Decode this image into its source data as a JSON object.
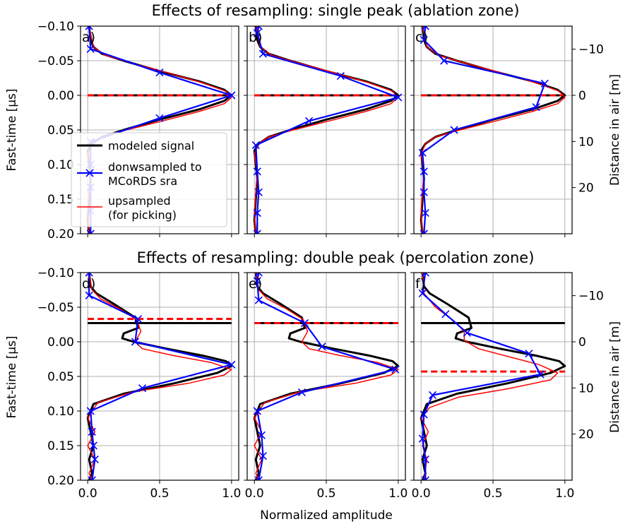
{
  "figure": {
    "title_top": "Effects of resampling: single peak (ablation zone)",
    "title_bottom": "Effects of resampling: double peak (percolation zone)",
    "ylabel_left": "Fast-time [µs]",
    "ylabel_right": "Distance in air [m]",
    "xlabel": "Normalized amplitude"
  },
  "legend": [
    {
      "label": "modeled signal",
      "color": "#000000",
      "style": "thick"
    },
    {
      "label": "donwsampled to\nMCoRDS sra",
      "color": "#0000ff",
      "style": "cross"
    },
    {
      "label": "upsampled\n(for picking)",
      "color": "#ff0000",
      "style": "thin"
    }
  ],
  "colors": {
    "modeled": "#000000",
    "down": "#0000ff",
    "up": "#ff0000",
    "grid": "#b0b0b0"
  },
  "chart_data": [
    {
      "panel": "a)",
      "type": "line",
      "xlim": [
        -0.05,
        1.05
      ],
      "ylim": [
        0.2,
        -0.1
      ],
      "xticks": [
        0.0,
        0.5,
        1.0
      ],
      "xtick_labels": [
        "0.0",
        "0.5",
        "1.0"
      ],
      "yticks": [
        -0.1,
        -0.05,
        0.0,
        0.05,
        0.1,
        0.15,
        0.2
      ],
      "ytick_labels": [
        "−0.10",
        "−0.05",
        "0.00",
        "0.05",
        "0.10",
        "0.15",
        "0.20"
      ],
      "series": [
        {
          "name": "modeled signal",
          "x": [
            0.01,
            0.02,
            0.04,
            0.1,
            0.25,
            0.5,
            0.78,
            0.95,
            1.0,
            0.95,
            0.78,
            0.5,
            0.25,
            0.1,
            0.03,
            0.0,
            0.01,
            0.02,
            0.01,
            0.0,
            0.01
          ],
          "y": [
            -0.1,
            -0.08,
            -0.07,
            -0.06,
            -0.05,
            -0.035,
            -0.02,
            -0.008,
            0.0,
            0.008,
            0.02,
            0.035,
            0.05,
            0.06,
            0.07,
            0.08,
            0.1,
            0.12,
            0.15,
            0.18,
            0.2
          ]
        },
        {
          "name": "donwsampled to MCoRDS sra",
          "x": [
            0.01,
            0.02,
            0.5,
            1.0,
            0.5,
            0.02,
            0.02,
            0.02,
            0.02,
            0.02
          ],
          "y": [
            -0.1,
            -0.067,
            -0.033,
            0.0,
            0.033,
            0.067,
            0.1,
            0.133,
            0.167,
            0.2
          ]
        },
        {
          "name": "upsampled (for picking)",
          "x": [
            0.01,
            0.04,
            0.12,
            0.3,
            0.55,
            0.8,
            0.96,
            1.0,
            0.95,
            0.78,
            0.52,
            0.27,
            0.1,
            0.03,
            0.0,
            0.02,
            0.01,
            0.0,
            0.01
          ],
          "y": [
            -0.1,
            -0.07,
            -0.058,
            -0.047,
            -0.033,
            -0.018,
            -0.006,
            0.003,
            0.012,
            0.023,
            0.037,
            0.05,
            0.06,
            0.07,
            0.085,
            0.11,
            0.14,
            0.17,
            0.2
          ]
        }
      ],
      "hlines": [
        {
          "y": 0.0,
          "color": "black",
          "style": "solid"
        },
        {
          "y": 0.0,
          "color": "red",
          "style": "dashed"
        }
      ]
    },
    {
      "panel": "b)",
      "type": "line",
      "xlim": [
        -0.05,
        1.05
      ],
      "ylim": [
        0.2,
        -0.1
      ],
      "xticks": [
        0.0,
        0.5,
        1.0
      ],
      "xtick_labels": [
        "0.0",
        "0.5",
        "1.0"
      ],
      "yticks": [
        -0.1,
        -0.05,
        0.0,
        0.05,
        0.1,
        0.15,
        0.2
      ],
      "ytick_labels": [],
      "series": [
        {
          "name": "modeled signal",
          "x": [
            0.01,
            0.02,
            0.04,
            0.1,
            0.25,
            0.5,
            0.78,
            0.95,
            1.0,
            0.95,
            0.78,
            0.5,
            0.25,
            0.1,
            0.03,
            0.0,
            0.01,
            0.02,
            0.01,
            0.0,
            0.01
          ],
          "y": [
            -0.1,
            -0.08,
            -0.07,
            -0.06,
            -0.05,
            -0.035,
            -0.02,
            -0.008,
            0.0,
            0.008,
            0.02,
            0.035,
            0.05,
            0.06,
            0.07,
            0.08,
            0.1,
            0.12,
            0.15,
            0.18,
            0.2
          ]
        },
        {
          "name": "donwsampled to MCoRDS sra",
          "x": [
            0.03,
            0.02,
            0.06,
            0.6,
            1.0,
            0.38,
            0.01,
            0.02,
            0.03,
            0.02,
            0.02
          ],
          "y": [
            -0.1,
            -0.09,
            -0.06,
            -0.028,
            0.003,
            0.037,
            0.072,
            0.11,
            0.14,
            0.17,
            0.2
          ]
        },
        {
          "name": "upsampled (for picking)",
          "x": [
            0.01,
            0.04,
            0.12,
            0.3,
            0.55,
            0.8,
            0.96,
            1.0,
            0.95,
            0.78,
            0.52,
            0.27,
            0.1,
            0.03,
            0.0,
            0.02,
            0.01,
            0.0,
            0.01
          ],
          "y": [
            -0.1,
            -0.07,
            -0.058,
            -0.047,
            -0.033,
            -0.018,
            -0.006,
            0.003,
            0.012,
            0.023,
            0.037,
            0.05,
            0.06,
            0.07,
            0.085,
            0.11,
            0.14,
            0.17,
            0.2
          ]
        }
      ],
      "hlines": [
        {
          "y": 0.0,
          "color": "black",
          "style": "solid"
        },
        {
          "y": 0.0,
          "color": "red",
          "style": "dashed"
        }
      ]
    },
    {
      "panel": "c)",
      "type": "line",
      "xlim": [
        -0.05,
        1.05
      ],
      "ylim": [
        0.2,
        -0.1
      ],
      "xticks": [
        0.0,
        0.5,
        1.0
      ],
      "xtick_labels": [
        "0.0",
        "0.5",
        "1.0"
      ],
      "yticks": [
        -0.1,
        -0.05,
        0.0,
        0.05,
        0.1,
        0.15,
        0.2
      ],
      "ytick_labels": [],
      "right_ticks_y": [
        -0.0667,
        0.0,
        0.0667,
        0.1333
      ],
      "right_tick_labels": [
        "−10",
        "0",
        "10",
        "20"
      ],
      "series": [
        {
          "name": "modeled signal",
          "x": [
            0.01,
            0.02,
            0.04,
            0.1,
            0.25,
            0.5,
            0.78,
            0.95,
            1.0,
            0.95,
            0.78,
            0.5,
            0.25,
            0.1,
            0.03,
            0.0,
            0.01,
            0.02,
            0.01,
            0.0,
            0.01
          ],
          "y": [
            -0.1,
            -0.08,
            -0.07,
            -0.06,
            -0.05,
            -0.035,
            -0.02,
            -0.008,
            0.0,
            0.008,
            0.02,
            0.035,
            0.05,
            0.06,
            0.07,
            0.08,
            0.1,
            0.12,
            0.15,
            0.18,
            0.2
          ]
        },
        {
          "name": "donwsampled to MCoRDS sra",
          "x": [
            0.03,
            0.02,
            0.16,
            0.86,
            0.8,
            0.23,
            0.01,
            0.02,
            0.02,
            0.03,
            0.02
          ],
          "y": [
            -0.1,
            -0.08,
            -0.05,
            -0.017,
            0.017,
            0.05,
            0.083,
            0.11,
            0.14,
            0.17,
            0.2
          ]
        },
        {
          "name": "upsampled (for picking)",
          "x": [
            0.01,
            0.04,
            0.12,
            0.3,
            0.55,
            0.8,
            0.96,
            1.0,
            0.95,
            0.78,
            0.52,
            0.27,
            0.1,
            0.03,
            0.0,
            0.02,
            0.01,
            0.0,
            0.01
          ],
          "y": [
            -0.1,
            -0.07,
            -0.058,
            -0.047,
            -0.033,
            -0.018,
            -0.006,
            0.003,
            0.012,
            0.023,
            0.037,
            0.05,
            0.06,
            0.07,
            0.085,
            0.11,
            0.14,
            0.17,
            0.2
          ]
        }
      ],
      "hlines": [
        {
          "y": 0.0,
          "color": "black",
          "style": "solid"
        },
        {
          "y": 0.0,
          "color": "red",
          "style": "dashed"
        }
      ]
    },
    {
      "panel": "d)",
      "type": "line",
      "xlim": [
        -0.05,
        1.05
      ],
      "ylim": [
        0.2,
        -0.1
      ],
      "xticks": [
        0.0,
        0.5,
        1.0
      ],
      "xtick_labels": [
        "0.0",
        "0.5",
        "1.0"
      ],
      "yticks": [
        -0.1,
        -0.05,
        0.0,
        0.05,
        0.1,
        0.15,
        0.2
      ],
      "ytick_labels": [
        "−0.10",
        "−0.05",
        "0.00",
        "0.05",
        "0.10",
        "0.15",
        "0.20"
      ],
      "series": [
        {
          "name": "modeled signal",
          "x": [
            0.01,
            0.02,
            0.06,
            0.18,
            0.33,
            0.35,
            0.25,
            0.24,
            0.32,
            0.55,
            0.8,
            0.96,
            1.0,
            0.9,
            0.6,
            0.25,
            0.04,
            0.0,
            0.02,
            0.04,
            0.01,
            0.03,
            0.01
          ],
          "y": [
            -0.1,
            -0.08,
            -0.07,
            -0.055,
            -0.035,
            -0.02,
            -0.012,
            -0.005,
            0.0,
            0.01,
            0.02,
            0.028,
            0.035,
            0.045,
            0.06,
            0.075,
            0.09,
            0.11,
            0.13,
            0.15,
            0.17,
            0.19,
            0.2
          ]
        },
        {
          "name": "donwsampled to MCoRDS sra",
          "x": [
            0.01,
            0.01,
            0.35,
            0.33,
            1.0,
            0.38,
            0.02,
            0.03,
            0.04,
            0.05,
            0.03
          ],
          "y": [
            -0.1,
            -0.067,
            -0.033,
            0.0,
            0.033,
            0.067,
            0.1,
            0.13,
            0.15,
            0.17,
            0.2
          ]
        },
        {
          "name": "upsampled (for picking)",
          "x": [
            0.01,
            0.03,
            0.09,
            0.22,
            0.34,
            0.37,
            0.33,
            0.38,
            0.6,
            0.86,
            1.0,
            0.95,
            0.7,
            0.32,
            0.07,
            0.0,
            0.05,
            0.0,
            0.05,
            0.01,
            0.03
          ],
          "y": [
            -0.1,
            -0.075,
            -0.062,
            -0.048,
            -0.032,
            -0.015,
            0.0,
            0.01,
            0.02,
            0.03,
            0.04,
            0.048,
            0.06,
            0.072,
            0.088,
            0.11,
            0.13,
            0.15,
            0.17,
            0.19,
            0.2
          ]
        }
      ],
      "hlines": [
        {
          "y": -0.027,
          "color": "black",
          "style": "solid"
        },
        {
          "y": -0.033,
          "color": "red",
          "style": "dashed"
        }
      ]
    },
    {
      "panel": "e)",
      "type": "line",
      "xlim": [
        -0.05,
        1.05
      ],
      "ylim": [
        0.2,
        -0.1
      ],
      "xticks": [
        0.0,
        0.5,
        1.0
      ],
      "xtick_labels": [
        "0.0",
        "0.5",
        "1.0"
      ],
      "yticks": [
        -0.1,
        -0.05,
        0.0,
        0.05,
        0.1,
        0.15,
        0.2
      ],
      "ytick_labels": [],
      "series": [
        {
          "name": "modeled signal",
          "x": [
            0.01,
            0.02,
            0.06,
            0.18,
            0.33,
            0.35,
            0.25,
            0.24,
            0.32,
            0.55,
            0.8,
            0.96,
            1.0,
            0.9,
            0.6,
            0.25,
            0.04,
            0.0,
            0.02,
            0.04,
            0.01,
            0.03,
            0.01
          ],
          "y": [
            -0.1,
            -0.08,
            -0.07,
            -0.055,
            -0.035,
            -0.02,
            -0.012,
            -0.005,
            0.0,
            0.01,
            0.02,
            0.028,
            0.035,
            0.045,
            0.06,
            0.075,
            0.09,
            0.11,
            0.13,
            0.15,
            0.17,
            0.19,
            0.2
          ]
        },
        {
          "name": "donwsampled to MCoRDS sra",
          "x": [
            0.03,
            0.02,
            0.03,
            0.35,
            0.47,
            0.98,
            0.33,
            0.02,
            0.05,
            0.06,
            0.03
          ],
          "y": [
            -0.1,
            -0.088,
            -0.06,
            -0.027,
            0.007,
            0.04,
            0.073,
            0.1,
            0.135,
            0.165,
            0.2
          ]
        },
        {
          "name": "upsampled (for picking)",
          "x": [
            0.01,
            0.03,
            0.09,
            0.22,
            0.34,
            0.37,
            0.33,
            0.38,
            0.6,
            0.86,
            1.0,
            0.95,
            0.7,
            0.32,
            0.07,
            0.0,
            0.05,
            0.0,
            0.05,
            0.01,
            0.03
          ],
          "y": [
            -0.1,
            -0.075,
            -0.062,
            -0.048,
            -0.032,
            -0.015,
            0.0,
            0.01,
            0.02,
            0.03,
            0.04,
            0.048,
            0.06,
            0.072,
            0.088,
            0.11,
            0.13,
            0.15,
            0.17,
            0.19,
            0.2
          ]
        }
      ],
      "hlines": [
        {
          "y": -0.027,
          "color": "black",
          "style": "solid"
        },
        {
          "y": -0.027,
          "color": "red",
          "style": "dashed"
        }
      ]
    },
    {
      "panel": "f)",
      "type": "line",
      "xlim": [
        -0.05,
        1.05
      ],
      "ylim": [
        0.2,
        -0.1
      ],
      "xticks": [
        0.0,
        0.5,
        1.0
      ],
      "xtick_labels": [
        "0.0",
        "0.5",
        "1.0"
      ],
      "yticks": [
        -0.1,
        -0.05,
        0.0,
        0.05,
        0.1,
        0.15,
        0.2
      ],
      "ytick_labels": [],
      "right_ticks_y": [
        -0.0667,
        0.0,
        0.0667,
        0.1333
      ],
      "right_tick_labels": [
        "−10",
        "0",
        "10",
        "20"
      ],
      "series": [
        {
          "name": "modeled signal",
          "x": [
            0.01,
            0.02,
            0.06,
            0.18,
            0.33,
            0.35,
            0.25,
            0.24,
            0.32,
            0.55,
            0.8,
            0.96,
            1.0,
            0.9,
            0.6,
            0.25,
            0.04,
            0.0,
            0.02,
            0.04,
            0.01,
            0.03,
            0.01
          ],
          "y": [
            -0.1,
            -0.08,
            -0.07,
            -0.055,
            -0.035,
            -0.02,
            -0.012,
            -0.005,
            0.0,
            0.01,
            0.02,
            0.028,
            0.035,
            0.045,
            0.06,
            0.075,
            0.09,
            0.11,
            0.13,
            0.15,
            0.17,
            0.19,
            0.2
          ]
        },
        {
          "name": "donwsampled to MCoRDS sra",
          "x": [
            0.03,
            0.01,
            0.17,
            0.32,
            0.75,
            0.83,
            0.08,
            0.02,
            0.01,
            0.03,
            0.03
          ],
          "y": [
            -0.1,
            -0.07,
            -0.04,
            -0.013,
            0.017,
            0.047,
            0.077,
            0.105,
            0.14,
            0.17,
            0.2
          ]
        },
        {
          "name": "upsampled (for picking)",
          "x": [
            0.01,
            0.02,
            0.1,
            0.23,
            0.3,
            0.3,
            0.4,
            0.62,
            0.82,
            0.95,
            0.9,
            0.6,
            0.26,
            0.06,
            0.0,
            0.05,
            0.01,
            0.04,
            0.02
          ],
          "y": [
            -0.1,
            -0.07,
            -0.05,
            -0.03,
            -0.015,
            -0.002,
            0.01,
            0.022,
            0.033,
            0.045,
            0.055,
            0.068,
            0.08,
            0.095,
            0.11,
            0.13,
            0.15,
            0.17,
            0.2
          ]
        }
      ],
      "hlines": [
        {
          "y": -0.027,
          "color": "black",
          "style": "solid"
        },
        {
          "y": 0.043,
          "color": "red",
          "style": "dashed"
        }
      ]
    }
  ]
}
